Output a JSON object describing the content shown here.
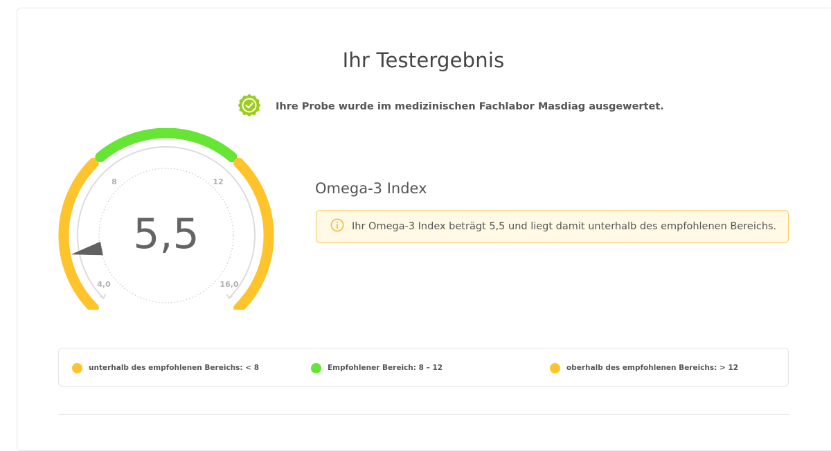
{
  "page": {
    "title": "Ihr Testergebnis"
  },
  "verification": {
    "icon": "verified-check-badge-icon",
    "text": "Ihre Probe wurde im medizinischen Fachlabor Masdiag ausgewertet."
  },
  "gauge": {
    "value_display": "5,5",
    "value": 5.5,
    "min_label": "4,0",
    "max_label": "16,0",
    "tick_low_label": "8",
    "tick_high_label": "12",
    "colors": {
      "below": "#ffc32b",
      "recommended": "#66e534",
      "above": "#ffc32b",
      "needle": "#616161"
    }
  },
  "result": {
    "title": "Omega-3 Index",
    "icon": "info-circle-icon",
    "message": "Ihr Omega-3 Index beträgt 5,5 und liegt damit unterhalb des empfohlenen Bereichs."
  },
  "legend": [
    {
      "label": "unterhalb des empfohlenen Bereichs: < 8",
      "color": "#ffc32b"
    },
    {
      "label": "Empfohlener Bereich: 8 – 12",
      "color": "#66e534"
    },
    {
      "label": "oberhalb des empfohlenen Bereichs: > 12",
      "color": "#ffc32b"
    }
  ]
}
